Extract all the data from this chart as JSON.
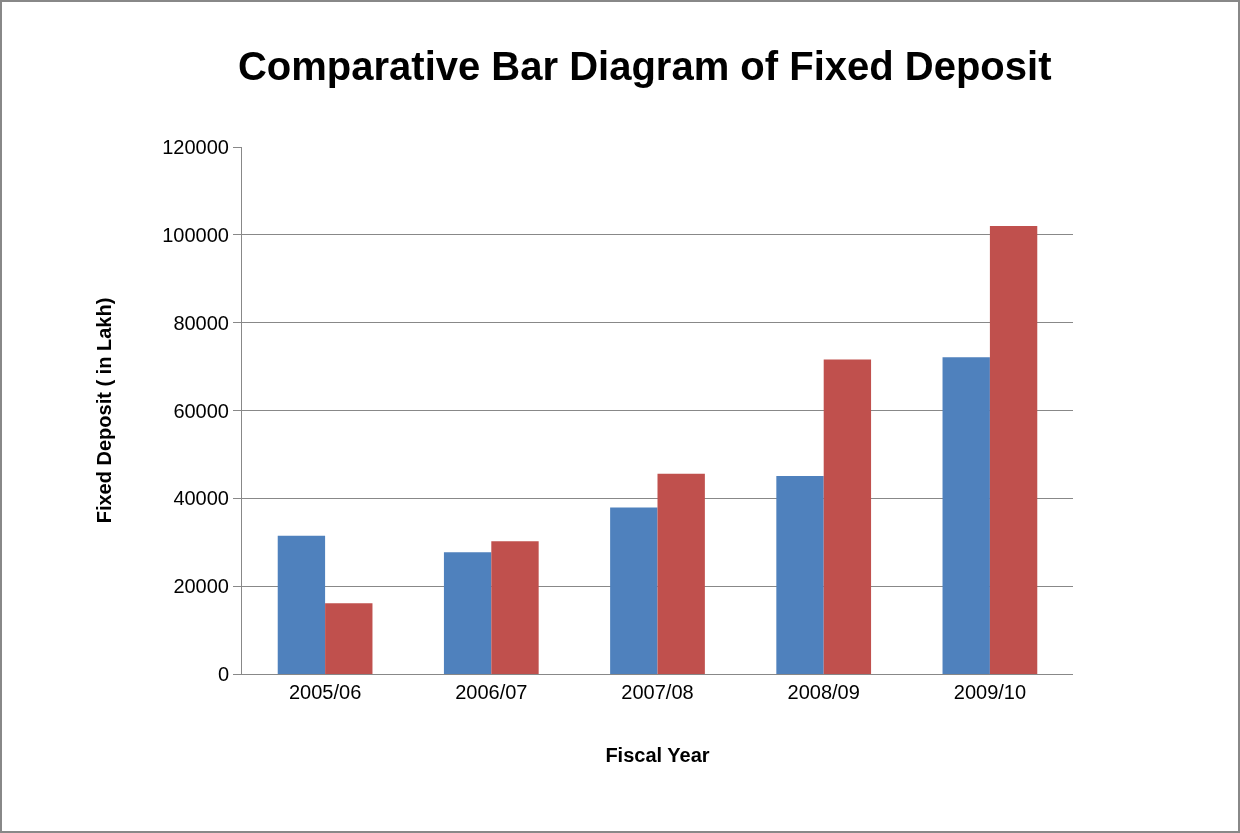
{
  "chart_data": {
    "type": "bar",
    "title": "Comparative Bar Diagram of Fixed Deposit",
    "xlabel": "Fiscal Year",
    "ylabel": "Fixed Deposit ( in Lakh)",
    "categories": [
      "2005/06",
      "2006/07",
      "2007/08",
      "2008/09",
      "2009/10"
    ],
    "series": [
      {
        "color": "#4f81bd",
        "values": [
          31500,
          27700,
          37900,
          45100,
          72100
        ]
      },
      {
        "color": "#c0504d",
        "values": [
          16100,
          30200,
          45600,
          71600,
          102000
        ]
      }
    ],
    "ylim": [
      0,
      120000
    ],
    "yticks": [
      0,
      20000,
      40000,
      60000,
      80000,
      100000,
      120000
    ],
    "grid": "y"
  }
}
